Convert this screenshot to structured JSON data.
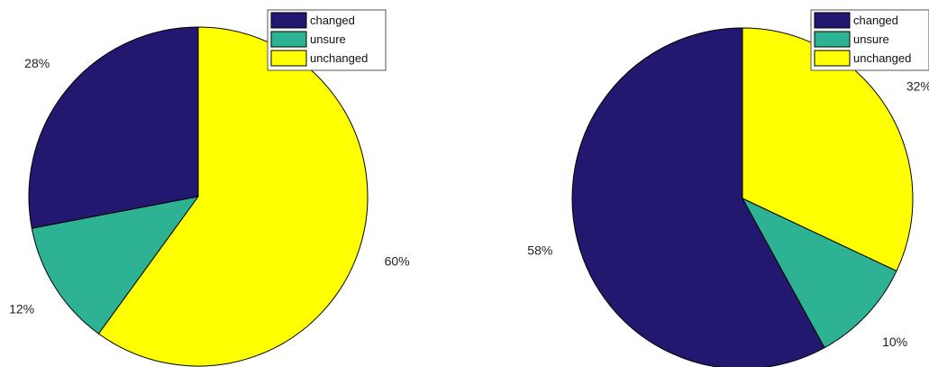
{
  "chart_data": [
    {
      "type": "pie",
      "categories": [
        "changed",
        "unsure",
        "unchanged"
      ],
      "values": [
        28,
        12,
        60
      ],
      "labels": [
        "28%",
        "12%",
        "60%"
      ],
      "colors": [
        "#22186F",
        "#2DB393",
        "#FFFF00"
      ],
      "legend": {
        "placement": "top-right",
        "entries": [
          "changed",
          "unsure",
          "unchanged"
        ]
      }
    },
    {
      "type": "pie",
      "categories": [
        "changed",
        "unsure",
        "unchanged"
      ],
      "values": [
        58,
        10,
        32
      ],
      "labels": [
        "58%",
        "10%",
        "32%"
      ],
      "colors": [
        "#22186F",
        "#2DB393",
        "#FFFF00"
      ],
      "legend": {
        "placement": "top-right",
        "entries": [
          "changed",
          "unsure",
          "unchanged"
        ]
      }
    }
  ]
}
